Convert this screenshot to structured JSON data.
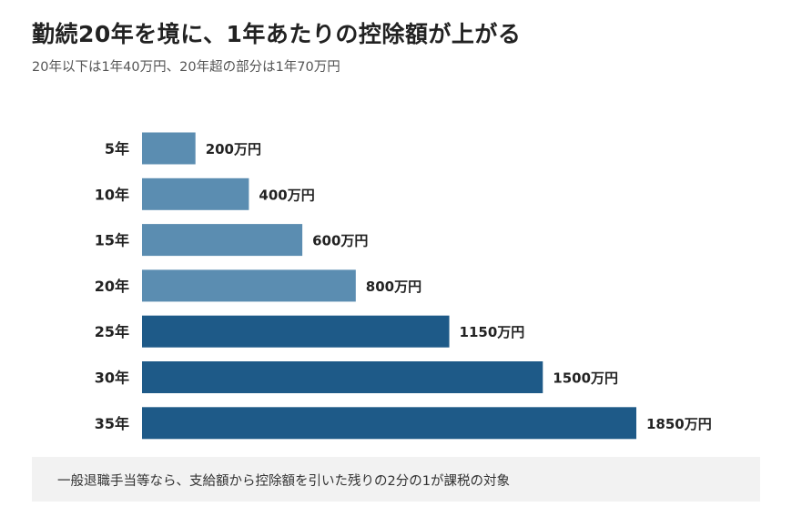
{
  "title": "勤続20年を境に、1年あたりの控除額が上がる",
  "subtitle": "20年以下は1年40万円、20年超の部分は1年70万円",
  "footnote": "一般退職手当等なら、支給額から控除額を引いた残りの2分の1が課税の対象",
  "colors": {
    "light_bar": "#5b8db1",
    "dark_bar": "#1e5a88",
    "label_text": "#222222"
  },
  "chart_data": {
    "type": "bar",
    "orientation": "horizontal",
    "categories": [
      "5年",
      "10年",
      "15年",
      "20年",
      "25年",
      "30年",
      "35年"
    ],
    "values": [
      200,
      400,
      600,
      800,
      1150,
      1500,
      1850
    ],
    "value_labels": [
      "200万円",
      "400万円",
      "600万円",
      "800万円",
      "1150万円",
      "1500万円",
      "1850万円"
    ],
    "unit": "万円",
    "xlim": [
      0,
      1850
    ],
    "grid": false,
    "legend": "none",
    "bar_color_group": [
      "light",
      "light",
      "light",
      "light",
      "dark",
      "dark",
      "dark"
    ]
  }
}
